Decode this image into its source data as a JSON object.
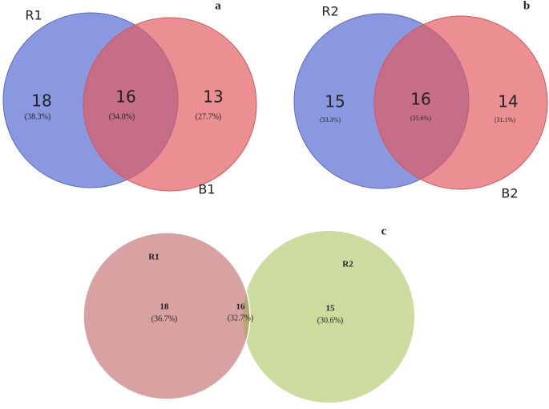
{
  "panels": [
    {
      "tag": "a",
      "sets": [
        "R1",
        "B1"
      ],
      "regions": [
        {
          "count": "18",
          "percent": "(38.3%)"
        },
        {
          "count": "16",
          "percent": "(34.0%)"
        },
        {
          "count": "13",
          "percent": "(27.7%)"
        }
      ]
    },
    {
      "tag": "b",
      "sets": [
        "R2",
        "B2"
      ],
      "regions": [
        {
          "count": "15",
          "percent": "(33.3%)"
        },
        {
          "count": "16",
          "percent": "(35.6%)"
        },
        {
          "count": "14",
          "percent": "(31.1%)"
        }
      ]
    },
    {
      "tag": "c",
      "sets": [
        "R1",
        "R2"
      ],
      "regions": [
        {
          "count": "18",
          "percent": "(36.7%)"
        },
        {
          "count": "16",
          "percent": "(32.7%)"
        },
        {
          "count": "15",
          "percent": "(30.6%)"
        }
      ]
    }
  ]
}
